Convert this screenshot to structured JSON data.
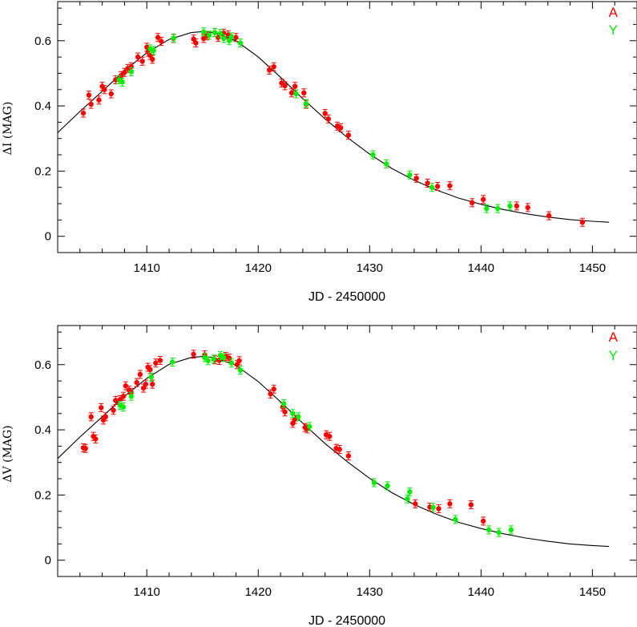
{
  "chart_data": [
    {
      "type": "scatter",
      "xlabel": "JD - 2450000",
      "ylabel": "ΔI (MAG)",
      "xlim": [
        1402,
        1454
      ],
      "ylim": [
        -0.05,
        0.72
      ],
      "xticks": [
        1410,
        1420,
        1430,
        1440,
        1450
      ],
      "yticks": [
        0,
        0.2,
        0.4,
        0.6
      ],
      "ytick_labels": [
        "0",
        "0.2",
        "0.4",
        "0.6"
      ],
      "grid": false,
      "legend_position": "top-right",
      "series": [
        {
          "name": "A",
          "color": "#ff0000",
          "x": [
            1404.3,
            1404.8,
            1405.0,
            1405.7,
            1406.0,
            1406.2,
            1406.8,
            1407.2,
            1407.7,
            1408.0,
            1408.3,
            1408.6,
            1409.2,
            1409.6,
            1410.0,
            1410.1,
            1410.3,
            1410.5,
            1411.0,
            1411.3,
            1412.4,
            1414.2,
            1414.4,
            1415.1,
            1415.4,
            1416.1,
            1416.4,
            1416.9,
            1417.3,
            1418.0,
            1421.0,
            1421.4,
            1422.1,
            1422.4,
            1423.0,
            1423.3,
            1424.1,
            1424.3,
            1426.0,
            1426.3,
            1427.1,
            1427.4,
            1428.1,
            1434.2,
            1435.2,
            1436.1,
            1437.2,
            1439.2,
            1440.2,
            1443.2,
            1444.2,
            1446.1,
            1449.1
          ],
          "y": [
            0.378,
            0.433,
            0.405,
            0.418,
            0.46,
            0.45,
            0.437,
            0.48,
            0.493,
            0.503,
            0.515,
            0.52,
            0.55,
            0.537,
            0.58,
            0.565,
            0.555,
            0.543,
            0.61,
            0.598,
            0.607,
            0.605,
            0.593,
            0.607,
            0.615,
            0.625,
            0.61,
            0.623,
            0.618,
            0.61,
            0.51,
            0.52,
            0.47,
            0.462,
            0.44,
            0.46,
            0.44,
            0.405,
            0.377,
            0.36,
            0.338,
            0.333,
            0.31,
            0.178,
            0.163,
            0.153,
            0.155,
            0.103,
            0.113,
            0.093,
            0.088,
            0.063,
            0.043
          ]
        },
        {
          "name": "Y",
          "color": "#00ee00",
          "x": [
            1407.5,
            1407.8,
            1408.6,
            1410.3,
            1410.6,
            1412.4,
            1415.1,
            1415.6,
            1416.1,
            1416.6,
            1416.9,
            1417.4,
            1417.6,
            1418.4,
            1423.4,
            1424.3,
            1430.3,
            1431.5,
            1433.6,
            1435.6,
            1440.5,
            1441.5,
            1442.6
          ],
          "y": [
            0.48,
            0.473,
            0.505,
            0.575,
            0.57,
            0.608,
            0.627,
            0.617,
            0.625,
            0.622,
            0.607,
            0.6,
            0.612,
            0.593,
            0.437,
            0.407,
            0.25,
            0.222,
            0.188,
            0.15,
            0.085,
            0.085,
            0.093
          ]
        }
      ],
      "fit_curve": {
        "x": [
          1402,
          1404,
          1406,
          1408,
          1410,
          1412,
          1414,
          1415,
          1416,
          1418,
          1420,
          1422,
          1424,
          1426,
          1428,
          1430,
          1432,
          1434,
          1436,
          1438,
          1440,
          1442,
          1444,
          1446,
          1448,
          1450,
          1451.5
        ],
        "y": [
          0.318,
          0.383,
          0.445,
          0.508,
          0.563,
          0.604,
          0.625,
          0.628,
          0.625,
          0.6,
          0.55,
          0.488,
          0.422,
          0.36,
          0.303,
          0.252,
          0.208,
          0.172,
          0.142,
          0.117,
          0.098,
          0.082,
          0.069,
          0.059,
          0.051,
          0.046,
          0.043
        ]
      }
    },
    {
      "type": "scatter",
      "xlabel": "JD - 2450000",
      "ylabel": "ΔV (MAG)",
      "xlim": [
        1402,
        1454
      ],
      "ylim": [
        -0.05,
        0.72
      ],
      "xticks": [
        1410,
        1420,
        1430,
        1440,
        1450
      ],
      "yticks": [
        0,
        0.2,
        0.4,
        0.6
      ],
      "ytick_labels": [
        "0",
        "0.2",
        "0.4",
        "0.6"
      ],
      "grid": false,
      "legend_position": "top-right",
      "series": [
        {
          "name": "A",
          "color": "#ff0000",
          "x": [
            1404.3,
            1404.5,
            1405.0,
            1405.2,
            1405.4,
            1405.9,
            1406.1,
            1406.3,
            1407.0,
            1407.2,
            1407.6,
            1407.9,
            1408.1,
            1408.4,
            1408.6,
            1409.1,
            1409.4,
            1409.7,
            1409.9,
            1410.1,
            1410.3,
            1410.5,
            1410.8,
            1411.2,
            1414.2,
            1415.2,
            1416.1,
            1416.5,
            1417.1,
            1417.4,
            1418.1,
            1418.3,
            1421.1,
            1421.4,
            1422.2,
            1422.4,
            1423.1,
            1423.3,
            1424.2,
            1424.4,
            1426.1,
            1426.4,
            1427.0,
            1427.3,
            1428.1,
            1434.1,
            1435.4,
            1436.2,
            1437.2,
            1439.1,
            1440.2
          ],
          "y": [
            0.345,
            0.343,
            0.44,
            0.38,
            0.372,
            0.468,
            0.43,
            0.44,
            0.46,
            0.49,
            0.493,
            0.503,
            0.535,
            0.522,
            0.515,
            0.545,
            0.57,
            0.528,
            0.54,
            0.592,
            0.585,
            0.54,
            0.605,
            0.613,
            0.632,
            0.63,
            0.615,
            0.613,
            0.625,
            0.62,
            0.6,
            0.612,
            0.51,
            0.525,
            0.47,
            0.455,
            0.42,
            0.432,
            0.407,
            0.403,
            0.385,
            0.38,
            0.343,
            0.34,
            0.32,
            0.173,
            0.163,
            0.158,
            0.173,
            0.17,
            0.12
          ]
        },
        {
          "name": "Y",
          "color": "#00ee00",
          "x": [
            1407.6,
            1407.9,
            1408.6,
            1410.4,
            1412.3,
            1415.2,
            1415.5,
            1416.0,
            1416.6,
            1416.9,
            1417.6,
            1418.4,
            1422.3,
            1423.1,
            1423.6,
            1424.6,
            1430.4,
            1431.6,
            1433.4,
            1433.6,
            1435.7,
            1437.7,
            1440.7,
            1441.6,
            1442.7
          ],
          "y": [
            0.475,
            0.47,
            0.503,
            0.562,
            0.608,
            0.622,
            0.612,
            0.617,
            0.628,
            0.622,
            0.605,
            0.583,
            0.48,
            0.45,
            0.44,
            0.41,
            0.238,
            0.228,
            0.188,
            0.21,
            0.162,
            0.125,
            0.093,
            0.085,
            0.093
          ]
        }
      ],
      "fit_curve": {
        "x": [
          1402,
          1404,
          1406,
          1408,
          1410,
          1412,
          1414,
          1415,
          1416,
          1418,
          1420,
          1422,
          1424,
          1426,
          1428,
          1430,
          1432,
          1434,
          1436,
          1438,
          1440,
          1442,
          1444,
          1446,
          1448,
          1450,
          1451.5
        ],
        "y": [
          0.312,
          0.378,
          0.44,
          0.503,
          0.558,
          0.601,
          0.622,
          0.625,
          0.622,
          0.598,
          0.548,
          0.486,
          0.42,
          0.358,
          0.302,
          0.251,
          0.207,
          0.171,
          0.141,
          0.116,
          0.097,
          0.081,
          0.068,
          0.058,
          0.05,
          0.045,
          0.042
        ]
      }
    }
  ]
}
